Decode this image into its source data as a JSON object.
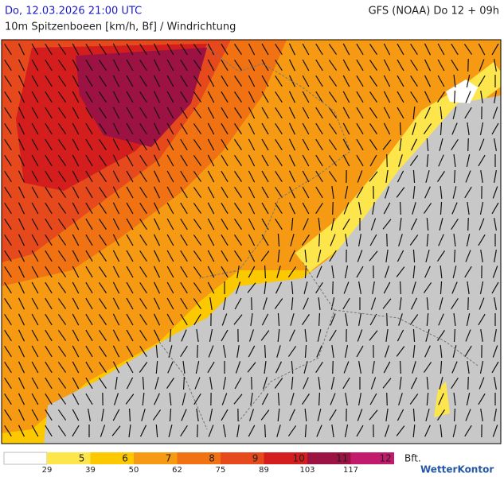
{
  "header": {
    "title": "Do, 12.03.2026 21:00 UTC",
    "model": "GFS (NOAA) Do 12 + 09h",
    "subtitle": "10m Spitzenboeen [km/h, Bf] / Windrichtung"
  },
  "legend": {
    "bft": [
      {
        "label": "5",
        "color": "#fde64b"
      },
      {
        "label": "6",
        "color": "#fcc800"
      },
      {
        "label": "7",
        "color": "#f59a12"
      },
      {
        "label": "8",
        "color": "#f07212"
      },
      {
        "label": "9",
        "color": "#e6491c"
      },
      {
        "label": "10",
        "color": "#d41d1d"
      },
      {
        "label": "11",
        "color": "#9b1243"
      },
      {
        "label": "12",
        "color": "#c21a6c"
      }
    ],
    "kmh": [
      "29",
      "39",
      "50",
      "62",
      "75",
      "89",
      "103",
      "117"
    ],
    "unit": "Bft.",
    "brand": "WetterKontor"
  }
}
